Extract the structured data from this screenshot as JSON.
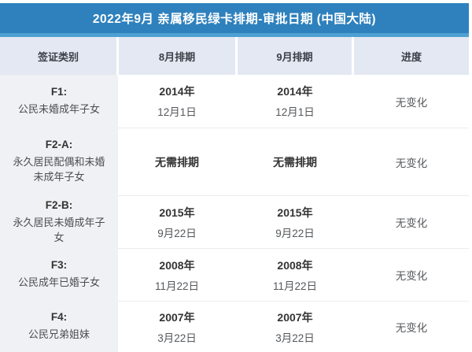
{
  "title": "2022年9月 亲属移民绿卡排期-审批日期 (中国大陆)",
  "colors": {
    "title_bar_blue": "#2f81bd",
    "title_strip_blue": "#4fa0d2",
    "header_bg": "#e3e8f2",
    "category_column_bg": "#f0f1f4",
    "row_separator": "#ececec",
    "text_dark": "#333333",
    "text_gray": "#55585c"
  },
  "table": {
    "headers": [
      "签证类别",
      "8月排期",
      "9月排期",
      "进度"
    ],
    "rows": [
      {
        "category_code": "F1:",
        "category_desc": "公民未婚成年子女",
        "aug_line1": "2014年",
        "aug_line2": "12月1日",
        "sep_line1": "2014年",
        "sep_line2": "12月1日",
        "progress": "无变化"
      },
      {
        "category_code": "F2-A:",
        "category_desc": "永久居民配偶和未婚未成年子女",
        "aug_line1": "无需排期",
        "aug_line2": "",
        "sep_line1": "无需排期",
        "sep_line2": "",
        "progress": "无变化"
      },
      {
        "category_code": "F2-B:",
        "category_desc": "永久居民未婚成年子女",
        "aug_line1": "2015年",
        "aug_line2": "9月22日",
        "sep_line1": "2015年",
        "sep_line2": "9月22日",
        "progress": "无变化"
      },
      {
        "category_code": "F3:",
        "category_desc": "公民成年已婚子女",
        "aug_line1": "2008年",
        "aug_line2": "11月22日",
        "sep_line1": "2008年",
        "sep_line2": "11月22日",
        "progress": "无变化"
      },
      {
        "category_code": "F4:",
        "category_desc": "公民兄弟姐妹",
        "aug_line1": "2007年",
        "aug_line2": "3月22日",
        "sep_line1": "2007年",
        "sep_line2": "3月22日",
        "progress": "无变化"
      }
    ]
  }
}
